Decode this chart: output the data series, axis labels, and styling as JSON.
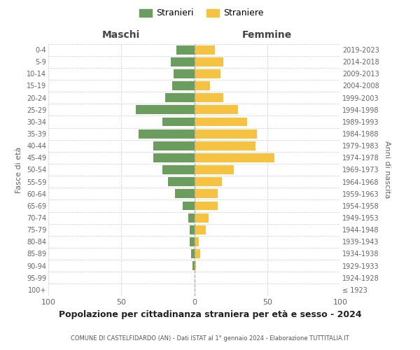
{
  "age_groups": [
    "100+",
    "95-99",
    "90-94",
    "85-89",
    "80-84",
    "75-79",
    "70-74",
    "65-69",
    "60-64",
    "55-59",
    "50-54",
    "45-49",
    "40-44",
    "35-39",
    "30-34",
    "25-29",
    "20-24",
    "15-19",
    "10-14",
    "5-9",
    "0-4"
  ],
  "birth_years": [
    "≤ 1923",
    "1924-1928",
    "1929-1933",
    "1934-1938",
    "1939-1943",
    "1944-1948",
    "1949-1953",
    "1954-1958",
    "1959-1963",
    "1964-1968",
    "1969-1973",
    "1974-1978",
    "1979-1983",
    "1984-1988",
    "1989-1993",
    "1994-1998",
    "1999-2003",
    "2004-2008",
    "2009-2013",
    "2014-2018",
    "2019-2023"
  ],
  "males": [
    0,
    0,
    1,
    2,
    3,
    3,
    4,
    8,
    13,
    18,
    22,
    28,
    28,
    38,
    22,
    40,
    20,
    15,
    14,
    16,
    12
  ],
  "females": [
    0,
    0,
    1,
    4,
    3,
    8,
    10,
    16,
    16,
    19,
    27,
    55,
    42,
    43,
    36,
    30,
    20,
    11,
    18,
    20,
    14
  ],
  "male_color": "#6b9e5e",
  "female_color": "#f5c242",
  "background_color": "#ffffff",
  "grid_color": "#cccccc",
  "title": "Popolazione per cittadinanza straniera per età e sesso - 2024",
  "subtitle": "COMUNE DI CASTELFIDARDO (AN) - Dati ISTAT al 1° gennaio 2024 - Elaborazione TUTTITALIA.IT",
  "ylabel_left": "Fasce di età",
  "ylabel_right": "Anni di nascita",
  "header_male": "Maschi",
  "header_female": "Femmine",
  "legend_male": "Stranieri",
  "legend_female": "Straniere",
  "xlim": 100,
  "bar_height": 0.75
}
